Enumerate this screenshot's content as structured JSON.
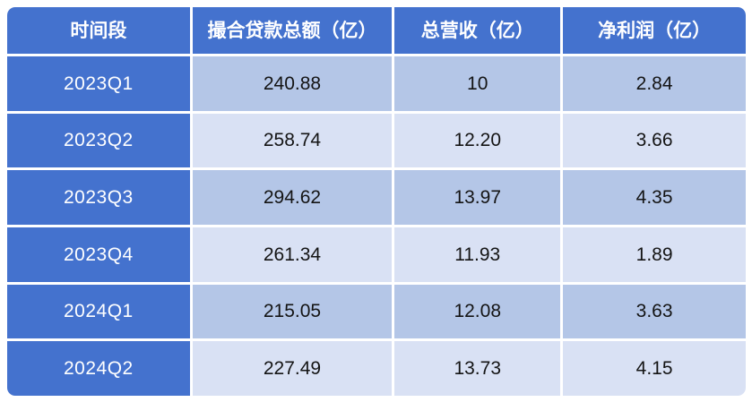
{
  "colors": {
    "header_bg": "#4472ce",
    "period_col_bg": "#4472ce",
    "row_odd_bg": "#b4c6e7",
    "row_even_bg": "#d9e1f4",
    "header_text": "#ffffff",
    "cell_text": "#141414",
    "grid_gap": "#ffffff"
  },
  "table": {
    "headers": [
      "时间段",
      "撮合贷款总额（亿）",
      "总营收（亿）",
      "净利润（亿）"
    ],
    "rows": [
      [
        "2023Q1",
        "240.88",
        "10",
        "2.84"
      ],
      [
        "2023Q2",
        "258.74",
        "12.20",
        "3.66"
      ],
      [
        "2023Q3",
        "294.62",
        "13.97",
        "4.35"
      ],
      [
        "2023Q4",
        "261.34",
        "11.93",
        "1.89"
      ],
      [
        "2024Q1",
        "215.05",
        "12.08",
        "3.63"
      ],
      [
        "2024Q2",
        "227.49",
        "13.73",
        "4.15"
      ]
    ]
  },
  "chart_data": {
    "type": "table",
    "title": "",
    "columns": [
      "时间段",
      "撮合贷款总额（亿）",
      "总营收（亿）",
      "净利润（亿）"
    ],
    "categories": [
      "2023Q1",
      "2023Q2",
      "2023Q3",
      "2023Q4",
      "2024Q1",
      "2024Q2"
    ],
    "series": [
      {
        "name": "撮合贷款总额（亿）",
        "values": [
          240.88,
          258.74,
          294.62,
          261.34,
          215.05,
          227.49
        ]
      },
      {
        "name": "总营收（亿）",
        "values": [
          10,
          12.2,
          13.97,
          11.93,
          12.08,
          13.73
        ]
      },
      {
        "name": "净利润（亿）",
        "values": [
          2.84,
          3.66,
          4.35,
          1.89,
          3.63,
          4.15
        ]
      }
    ]
  }
}
